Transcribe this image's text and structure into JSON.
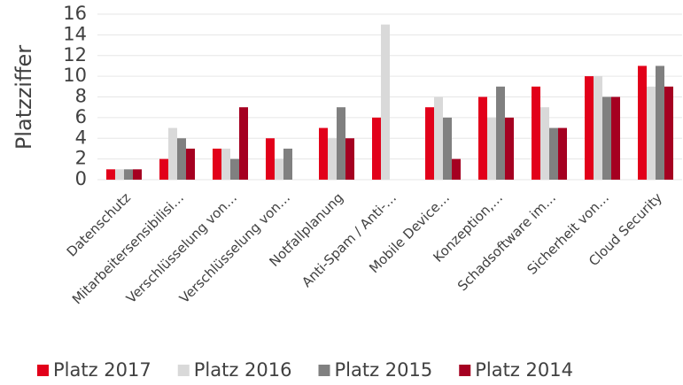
{
  "chart_data": {
    "type": "bar",
    "y_label": "Platzziffer",
    "categories": [
      "Datenschutz",
      "Mitarbeitersensibilisi…",
      "Verschlüsselung von…",
      "Verschlüsselung von…",
      "Notfallplanung",
      "Anti-Spam / Anti-…",
      "Mobile Device…",
      "Konzeption,…",
      "Schadsoftware im…",
      "Sicherheit von…",
      "Cloud Security"
    ],
    "series": [
      {
        "name": "Platz 2017",
        "color": "#e2001a",
        "values": [
          1,
          2,
          3,
          4,
          5,
          6,
          7,
          8,
          9,
          10,
          11
        ]
      },
      {
        "name": "Platz 2016",
        "color": "#d9d9d9",
        "values": [
          1,
          5,
          3,
          2,
          4,
          15,
          8,
          6,
          7,
          10,
          9
        ]
      },
      {
        "name": "Platz 2015",
        "color": "#808080",
        "values": [
          1,
          4,
          2,
          3,
          7,
          null,
          6,
          9,
          5,
          8,
          11
        ]
      },
      {
        "name": "Platz 2014",
        "color": "#a50021",
        "values": [
          1,
          3,
          7,
          null,
          4,
          null,
          2,
          6,
          5,
          8,
          9
        ]
      }
    ],
    "ylim": [
      0,
      16
    ],
    "yticks": [
      0,
      2,
      4,
      6,
      8,
      10,
      12,
      14,
      16
    ],
    "grid": true,
    "legend": "bottom"
  }
}
